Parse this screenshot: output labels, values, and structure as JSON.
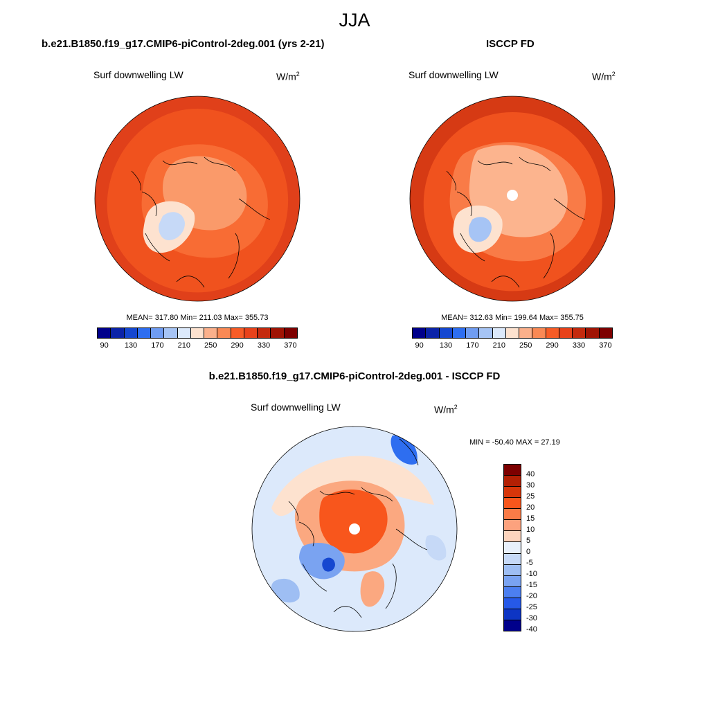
{
  "title": "JJA",
  "panels": [
    {
      "title": "b.e21.B1850.f19_g17.CMIP6-piControl-2deg.001 (yrs 2-21)",
      "variable": "Surf downwelling LW",
      "units": "W/m",
      "units_exp": "2",
      "stats": "MEAN= 317.80  Min= 211.03  Max= 355.73"
    },
    {
      "title": "ISCCP FD",
      "variable": "Surf downwelling LW",
      "units": "W/m",
      "units_exp": "2",
      "stats": "MEAN= 312.63  Min= 199.64  Max= 355.75"
    },
    {
      "title": "b.e21.B1850.f19_g17.CMIP6-piControl-2deg.001 - ISCCP FD",
      "variable": "Surf downwelling LW",
      "units": "W/m",
      "units_exp": "2",
      "stats": "MIN = -50.40 MAX =  27.19"
    }
  ],
  "colorbar_abs": {
    "colors": [
      "#00008b",
      "#0b23a8",
      "#1547d0",
      "#2e6ef0",
      "#6f9cf2",
      "#a6c4f5",
      "#dce9fb",
      "#fde2cf",
      "#fbb08b",
      "#f98955",
      "#f75c26",
      "#e8421a",
      "#c42a0e",
      "#a01404",
      "#7d0000"
    ],
    "tick_labels": [
      "90",
      "130",
      "170",
      "210",
      "250",
      "290",
      "330",
      "370"
    ]
  },
  "colorbar_diff": {
    "colors": [
      "#7d0000",
      "#b32004",
      "#d7360a",
      "#f8561c",
      "#f97b47",
      "#fca27e",
      "#fdd4bd",
      "#e8f0fb",
      "#c6d9f7",
      "#9ebef3",
      "#7aa3f1",
      "#4c7ff0",
      "#2659e8",
      "#0d35c4",
      "#00008b"
    ],
    "tick_labels": [
      "40",
      "30",
      "25",
      "20",
      "15",
      "10",
      "5",
      "0",
      "-5",
      "-10",
      "-15",
      "-20",
      "-25",
      "-30",
      "-40"
    ]
  }
}
